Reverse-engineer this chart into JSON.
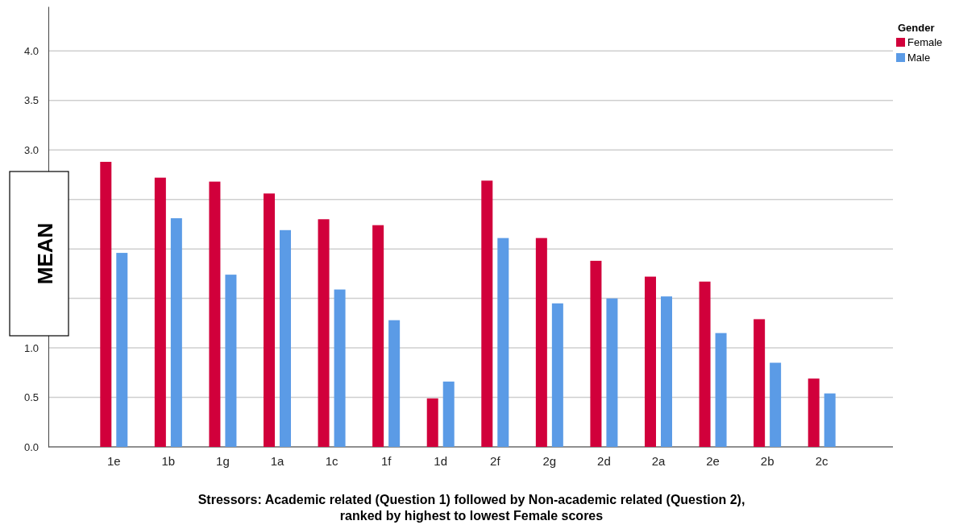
{
  "chart_data": {
    "type": "bar",
    "xlabel": "Stressors: Academic related (Question 1) followed by Non-academic related (Question 2),\nranked by highest to lowest Female scores",
    "ylabel": "MEAN",
    "legend_title": "Gender",
    "legend": "top right",
    "grid": "y",
    "categories": [
      "1e",
      "1b",
      "1g",
      "1a",
      "1c",
      "1f",
      "1d",
      "2f",
      "2g",
      "2d",
      "2a",
      "2e",
      "2b",
      "2c"
    ],
    "ylim": [
      0,
      4.45
    ],
    "yticks": [
      {
        "value": 0,
        "label": "0.0"
      },
      {
        "value": 0.5,
        "label": "0.5"
      },
      {
        "value": 1,
        "label": "1.0"
      },
      {
        "value": 1.5,
        "label": null
      },
      {
        "value": 2,
        "label": null
      },
      {
        "value": 2.5,
        "label": null
      },
      {
        "value": 3,
        "label": "3.0"
      },
      {
        "value": 3.5,
        "label": "3.5"
      },
      {
        "value": 4,
        "label": "4.0"
      }
    ],
    "series": [
      {
        "name": "Female",
        "color": "#d1003b",
        "values": [
          2.88,
          2.72,
          2.68,
          2.56,
          2.3,
          2.24,
          0.49,
          2.69,
          2.11,
          1.88,
          1.72,
          1.67,
          1.29,
          0.69
        ]
      },
      {
        "name": "Male",
        "color": "#5b9be6",
        "values": [
          1.96,
          2.31,
          1.74,
          2.19,
          1.59,
          1.28,
          0.66,
          2.11,
          1.45,
          1.5,
          1.52,
          1.15,
          0.85,
          0.54
        ]
      }
    ]
  }
}
